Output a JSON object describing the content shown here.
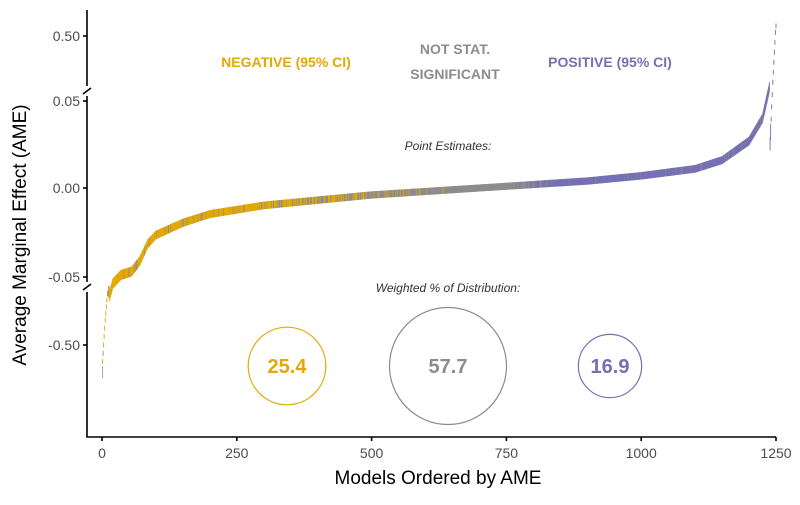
{
  "chart_data": {
    "type": "scatter",
    "title": "",
    "xlabel": "Models Ordered by AME",
    "ylabel": "Average Marginal Effect (AME)",
    "xlim": [
      0,
      1250
    ],
    "x_ticks": [
      "0",
      "250",
      "500",
      "750",
      "1000",
      "1250"
    ],
    "x_tick_values": [
      0,
      250,
      500,
      750,
      1000,
      1250
    ],
    "y_axis_broken": true,
    "y_ticks": [
      "0.50",
      "0.05",
      "0.00",
      "-0.05",
      "-0.50"
    ],
    "y_tick_values": [
      0.5,
      0.05,
      0.0,
      -0.05,
      -0.5
    ],
    "curve_points": [
      [
        0,
        -0.7
      ],
      [
        3,
        -0.5
      ],
      [
        6,
        -0.3
      ],
      [
        10,
        -0.09
      ],
      [
        14,
        -0.062
      ],
      [
        20,
        -0.055
      ],
      [
        35,
        -0.05
      ],
      [
        55,
        -0.048
      ],
      [
        70,
        -0.042
      ],
      [
        85,
        -0.032
      ],
      [
        100,
        -0.027
      ],
      [
        150,
        -0.02
      ],
      [
        200,
        -0.015
      ],
      [
        300,
        -0.01
      ],
      [
        400,
        -0.007
      ],
      [
        500,
        -0.004
      ],
      [
        600,
        -0.002
      ],
      [
        700,
        0.0
      ],
      [
        800,
        0.002
      ],
      [
        900,
        0.004
      ],
      [
        1000,
        0.007
      ],
      [
        1100,
        0.011
      ],
      [
        1150,
        0.016
      ],
      [
        1200,
        0.027
      ],
      [
        1225,
        0.04
      ],
      [
        1238,
        0.058
      ],
      [
        1244,
        0.33
      ],
      [
        1250,
        0.55
      ]
    ],
    "classification_bands": [
      {
        "from": 0,
        "to": 300,
        "class": "negative"
      },
      {
        "from": 300,
        "to": 640,
        "class": "mixed-negative"
      },
      {
        "from": 640,
        "to": 760,
        "class": "not-significant"
      },
      {
        "from": 760,
        "to": 830,
        "class": "mixed-positive"
      },
      {
        "from": 830,
        "to": 1250,
        "class": "positive"
      }
    ],
    "categories": [
      {
        "label": "NEGATIVE (95% CI)",
        "weighted_pct": 25.4,
        "pct_label": "25.4",
        "color": "#E3A805"
      },
      {
        "label_line1": "NOT STAT.",
        "label_line2": "SIGNIFICANT",
        "weighted_pct": 57.7,
        "pct_label": "57.7",
        "color": "#8C8C8C"
      },
      {
        "label": "POSITIVE (95% CI)",
        "weighted_pct": 16.9,
        "pct_label": "16.9",
        "color": "#7570B3"
      }
    ],
    "annotations": {
      "point_estimates": "Point Estimates:",
      "weighted_distribution": "Weighted % of Distribution:"
    }
  }
}
